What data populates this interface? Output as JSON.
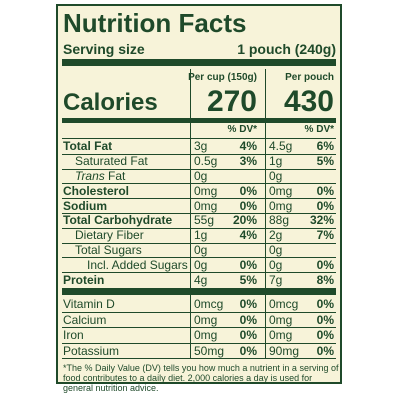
{
  "header": {
    "title": "Nutrition Facts",
    "serving_size_label": "Serving size",
    "serving_size_value": "1 pouch (240g)"
  },
  "columns": [
    "Per cup (150g)",
    "Per pouch"
  ],
  "calories": {
    "label": "Calories",
    "values": [
      "270",
      "430"
    ]
  },
  "dv_header": "% DV*",
  "rows": [
    {
      "name": "Total Fat",
      "bold": true,
      "indent": 0,
      "amounts": [
        "3g",
        "4.5g"
      ],
      "dv": [
        "4%",
        "6%"
      ]
    },
    {
      "name": "Saturated Fat",
      "bold": false,
      "indent": 1,
      "amounts": [
        "0.5g",
        "1g"
      ],
      "dv": [
        "3%",
        "5%"
      ]
    },
    {
      "name_italic": "Trans",
      "name": "Fat",
      "bold": false,
      "indent": 1,
      "amounts": [
        "0g",
        "0g"
      ],
      "dv": [
        null,
        null
      ]
    },
    {
      "name": "Cholesterol",
      "bold": true,
      "indent": 0,
      "amounts": [
        "0mg",
        "0mg"
      ],
      "dv": [
        "0%",
        "0%"
      ]
    },
    {
      "name": "Sodium",
      "bold": true,
      "indent": 0,
      "amounts": [
        "0mg",
        "0mg"
      ],
      "dv": [
        "0%",
        "0%"
      ]
    },
    {
      "name": "Total Carbohydrate",
      "bold": true,
      "indent": 0,
      "amounts": [
        "55g",
        "88g"
      ],
      "dv": [
        "20%",
        "32%"
      ]
    },
    {
      "name": "Dietary Fiber",
      "bold": false,
      "indent": 1,
      "amounts": [
        "1g",
        "2g"
      ],
      "dv": [
        "4%",
        "7%"
      ]
    },
    {
      "name": "Total Sugars",
      "bold": false,
      "indent": 1,
      "amounts": [
        "0g",
        "0g"
      ],
      "dv": [
        null,
        null
      ]
    },
    {
      "name": "Incl. Added Sugars",
      "bold": false,
      "indent": 2,
      "amounts": [
        "0g",
        "0g"
      ],
      "dv": [
        "0%",
        "0%"
      ]
    },
    {
      "name": "Protein",
      "bold": true,
      "indent": 0,
      "amounts": [
        "4g",
        "7g"
      ],
      "dv": [
        "5%",
        "8%"
      ]
    }
  ],
  "vitamins": [
    {
      "name": "Vitamin D",
      "amounts": [
        "0mcg",
        "0mcg"
      ],
      "dv": [
        "0%",
        "0%"
      ]
    },
    {
      "name": "Calcium",
      "amounts": [
        "0mg",
        "0mg"
      ],
      "dv": [
        "0%",
        "0%"
      ]
    },
    {
      "name": "Iron",
      "amounts": [
        "0mg",
        "0mg"
      ],
      "dv": [
        "0%",
        "0%"
      ]
    },
    {
      "name": "Potassium",
      "amounts": [
        "50mg",
        "90mg"
      ],
      "dv": [
        "0%",
        "0%"
      ]
    }
  ],
  "footnote": "*The % Daily Value (DV) tells you how much a nutrient in a serving of food contributes to a daily diet. 2,000 calories a day is used for general nutrition advice."
}
